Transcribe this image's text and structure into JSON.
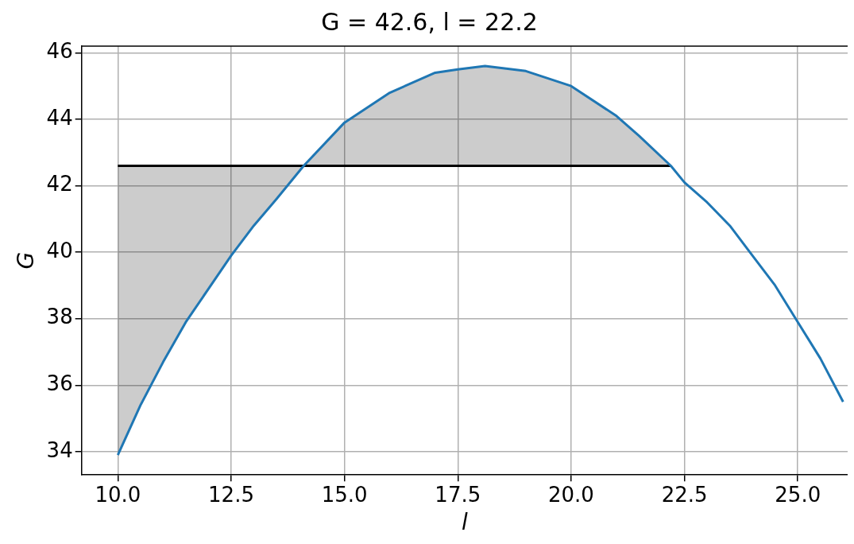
{
  "chart_data": {
    "type": "line",
    "title": "G = 42.6, l = 22.2",
    "xlabel": "l",
    "ylabel": "G",
    "xlim": [
      9.2,
      26.1
    ],
    "ylim": [
      33.3,
      46.2
    ],
    "xticks": [
      {
        "value": 10,
        "label": "10.0"
      },
      {
        "value": 12.5,
        "label": "12.5"
      },
      {
        "value": 15,
        "label": "15.0"
      },
      {
        "value": 17.5,
        "label": "17.5"
      },
      {
        "value": 20,
        "label": "20.0"
      },
      {
        "value": 22.5,
        "label": "22.5"
      },
      {
        "value": 25,
        "label": "25.0"
      }
    ],
    "yticks": [
      34,
      36,
      38,
      40,
      42,
      44,
      46
    ],
    "grid": true,
    "legend": false,
    "marker": "none",
    "line_style": "solid",
    "series": [
      {
        "color": "#1f77b4",
        "x": [
          10,
          10.5,
          11,
          11.5,
          12,
          12.5,
          13,
          13.5,
          14.1,
          15,
          16,
          17,
          17.5,
          18.1,
          19,
          20,
          21,
          21.5,
          22.2,
          22.5,
          23,
          23.5,
          24,
          24.5,
          25,
          25.5,
          26
        ],
        "values": [
          33.9,
          35.4,
          36.7,
          37.9,
          38.9,
          39.9,
          40.8,
          41.6,
          42.6,
          43.9,
          44.8,
          45.4,
          45.5,
          45.6,
          45.45,
          45.0,
          44.1,
          43.5,
          42.6,
          42.1,
          41.5,
          40.8,
          39.9,
          39.0,
          37.9,
          36.8,
          35.5
        ]
      },
      {
        "color": "#000000",
        "x": [
          10,
          10.5,
          11,
          11.5,
          12,
          12.5,
          13,
          13.5,
          14.1,
          15,
          16,
          17,
          17.5,
          18.1,
          19,
          20,
          21,
          21.5,
          22.2
        ],
        "values": [
          42.6,
          42.6,
          42.6,
          42.6,
          42.6,
          42.6,
          42.6,
          42.6,
          42.6,
          42.6,
          42.6,
          42.6,
          42.6,
          42.6,
          42.6,
          42.6,
          42.6,
          42.6,
          42.6
        ],
        "lower": [
          33.9,
          35.4,
          36.7,
          37.9,
          38.9,
          39.9,
          40.8,
          41.6,
          42.6,
          42.6,
          42.6,
          42.6,
          42.6,
          42.6,
          42.6,
          42.6,
          42.6,
          42.6,
          42.6
        ],
        "upper": [
          42.6,
          42.6,
          42.6,
          42.6,
          42.6,
          42.6,
          42.6,
          42.6,
          42.6,
          43.9,
          44.8,
          45.4,
          45.5,
          45.6,
          45.45,
          45.0,
          44.1,
          43.5,
          42.6
        ]
      }
    ]
  }
}
